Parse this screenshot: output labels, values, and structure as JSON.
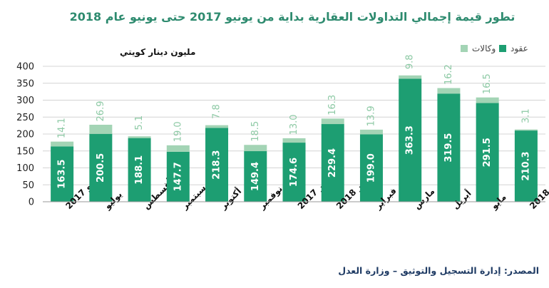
{
  "chart_data": {
    "type": "bar",
    "stacked": true,
    "title": "تطور قيمة إجمالي التداولات العقارية بداية من يونيو 2017 حتى يونيو عام 2018",
    "ylabel": "مليون دينار كويتي",
    "xlabel": "",
    "ylim": [
      0,
      400
    ],
    "yticks": [
      0,
      50,
      100,
      150,
      200,
      250,
      300,
      350,
      400
    ],
    "grid": "horizontal",
    "legend_position": "top-right",
    "categories": [
      "يونيو 2017",
      "يوليو",
      "أغسطس",
      "سبتمبر",
      "أكتوبر",
      "نوفمبر",
      "ديسمبر 2017",
      "يناير 2018",
      "فبراير",
      "مارس",
      "أبريل",
      "مايو",
      "يونيو 2018"
    ],
    "series": [
      {
        "name": "عقود",
        "color": "#1d9e72",
        "values": [
          163.5,
          200.5,
          188.1,
          147.7,
          218.3,
          149.4,
          174.6,
          229.4,
          199.0,
          363.3,
          319.5,
          291.5,
          210.3
        ]
      },
      {
        "name": "وكالات",
        "color": "#a3d4b5",
        "values": [
          14.1,
          26.9,
          5.1,
          19.0,
          7.8,
          18.5,
          13.0,
          16.3,
          13.9,
          9.8,
          16.2,
          16.5,
          3.1
        ]
      }
    ]
  },
  "source": "المصدر: إدارة التسجيل والتوثيق – وزارة العدل"
}
